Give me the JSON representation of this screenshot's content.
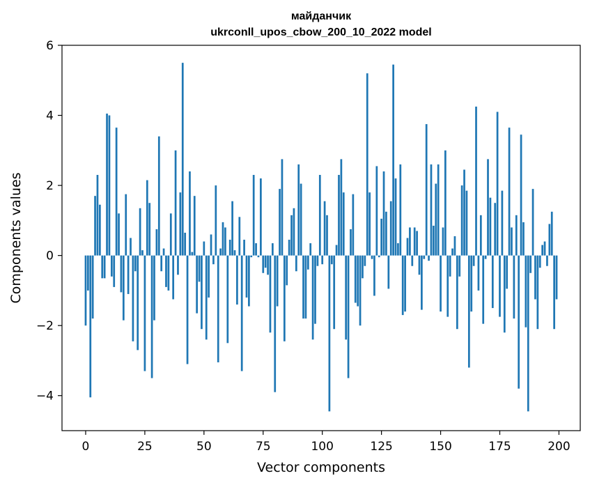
{
  "chart_data": {
    "type": "bar",
    "title": "майданчик",
    "subtitle": "ukrconll_upos_cbow_200_10_2022 model",
    "xlabel": "Vector components",
    "ylabel": "Components values",
    "xlim": [
      -10,
      209
    ],
    "ylim": [
      -5,
      6
    ],
    "xticks": [
      0,
      25,
      50,
      75,
      100,
      125,
      150,
      175,
      200
    ],
    "yticks": [
      -4,
      -2,
      0,
      2,
      4,
      6
    ],
    "ytick_labels": [
      "−4",
      "−2",
      "0",
      "2",
      "4",
      "6"
    ],
    "grid": false,
    "bar_color": "#1f77b4",
    "x": [
      0,
      1,
      2,
      3,
      4,
      5,
      6,
      7,
      8,
      9,
      10,
      11,
      12,
      13,
      14,
      15,
      16,
      17,
      18,
      19,
      20,
      21,
      22,
      23,
      24,
      25,
      26,
      27,
      28,
      29,
      30,
      31,
      32,
      33,
      34,
      35,
      36,
      37,
      38,
      39,
      40,
      41,
      42,
      43,
      44,
      45,
      46,
      47,
      48,
      49,
      50,
      51,
      52,
      53,
      54,
      55,
      56,
      57,
      58,
      59,
      60,
      61,
      62,
      63,
      64,
      65,
      66,
      67,
      68,
      69,
      70,
      71,
      72,
      73,
      74,
      75,
      76,
      77,
      78,
      79,
      80,
      81,
      82,
      83,
      84,
      85,
      86,
      87,
      88,
      89,
      90,
      91,
      92,
      93,
      94,
      95,
      96,
      97,
      98,
      99,
      100,
      101,
      102,
      103,
      104,
      105,
      106,
      107,
      108,
      109,
      110,
      111,
      112,
      113,
      114,
      115,
      116,
      117,
      118,
      119,
      120,
      121,
      122,
      123,
      124,
      125,
      126,
      127,
      128,
      129,
      130,
      131,
      132,
      133,
      134,
      135,
      136,
      137,
      138,
      139,
      140,
      141,
      142,
      143,
      144,
      145,
      146,
      147,
      148,
      149,
      150,
      151,
      152,
      153,
      154,
      155,
      156,
      157,
      158,
      159,
      160,
      161,
      162,
      163,
      164,
      165,
      166,
      167,
      168,
      169,
      170,
      171,
      172,
      173,
      174,
      175,
      176,
      177,
      178,
      179,
      180,
      181,
      182,
      183,
      184,
      185,
      186,
      187,
      188,
      189,
      190,
      191,
      192,
      193,
      194,
      195,
      196,
      197,
      198,
      199
    ],
    "values": [
      -2.0,
      -1.0,
      -4.05,
      -1.8,
      1.7,
      2.3,
      1.45,
      -0.65,
      -0.65,
      4.05,
      4.0,
      -0.6,
      -0.9,
      3.65,
      1.2,
      -1.05,
      -1.85,
      1.75,
      -1.1,
      0.5,
      -2.45,
      -0.45,
      -2.7,
      1.35,
      0.15,
      -3.3,
      2.15,
      1.5,
      -3.5,
      -1.85,
      0.75,
      3.4,
      -0.45,
      0.2,
      -0.9,
      -1.0,
      1.2,
      -1.25,
      3.0,
      -0.55,
      1.8,
      5.5,
      0.65,
      -3.1,
      2.4,
      0.1,
      1.7,
      -1.65,
      -0.75,
      -2.1,
      0.4,
      -2.4,
      -1.2,
      0.6,
      -0.25,
      2.0,
      -3.05,
      0.2,
      0.95,
      0.8,
      -2.5,
      0.45,
      1.55,
      0.15,
      -1.4,
      1.1,
      -3.3,
      0.45,
      -1.2,
      -1.45,
      -0.05,
      2.3,
      0.35,
      -0.05,
      2.2,
      -0.5,
      -0.35,
      -0.55,
      -2.2,
      0.35,
      -3.9,
      -1.45,
      1.9,
      2.75,
      -2.45,
      -0.85,
      0.45,
      1.15,
      1.35,
      -0.45,
      2.6,
      2.05,
      -1.8,
      -1.8,
      -0.4,
      0.35,
      -2.4,
      -1.95,
      -0.3,
      2.3,
      -0.25,
      1.55,
      1.15,
      -4.45,
      -0.25,
      -2.1,
      0.3,
      2.3,
      2.75,
      1.8,
      -2.4,
      -3.5,
      0.75,
      1.75,
      -1.35,
      -1.45,
      -2.0,
      -0.65,
      -0.3,
      5.2,
      1.8,
      -0.1,
      -1.15,
      2.55,
      -0.05,
      1.05,
      2.4,
      1.25,
      -0.95,
      1.55,
      5.45,
      2.2,
      0.35,
      2.6,
      -1.7,
      -1.6,
      0.5,
      0.8,
      -0.3,
      0.8,
      0.7,
      -0.55,
      -1.55,
      -0.1,
      3.75,
      -0.15,
      2.6,
      0.85,
      2.05,
      2.6,
      -1.6,
      0.8,
      3.0,
      -1.75,
      -0.6,
      0.2,
      0.55,
      -2.1,
      -0.6,
      2.0,
      2.45,
      1.85,
      -3.2,
      -1.6,
      -0.3,
      4.25,
      -1.0,
      1.15,
      -1.95,
      -0.1,
      2.75,
      1.65,
      -1.5,
      1.5,
      4.1,
      -1.75,
      1.85,
      -2.2,
      -0.95,
      3.65,
      0.8,
      -1.8,
      1.15,
      -3.8,
      3.45,
      0.95,
      -2.05,
      -4.45,
      -0.5,
      1.9,
      -1.25,
      -2.1,
      -0.35,
      0.3,
      0.4,
      -0.3,
      0.9,
      1.25,
      -2.1,
      -1.25
    ]
  }
}
